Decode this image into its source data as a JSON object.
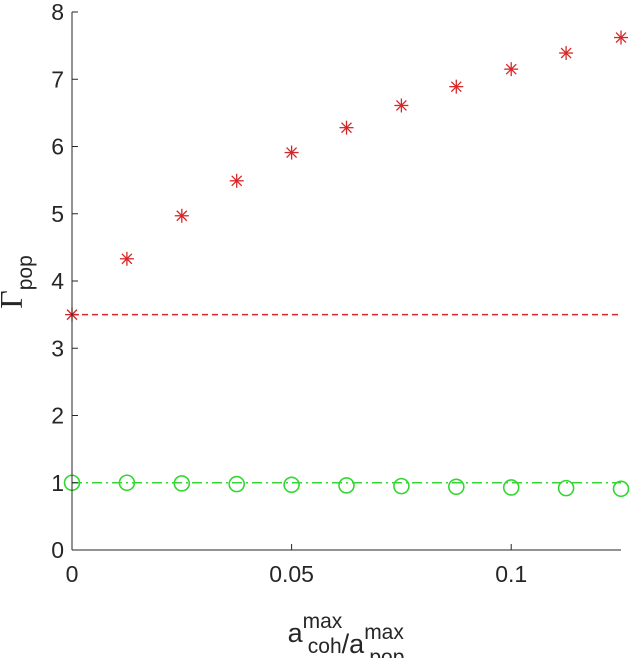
{
  "chart_data": {
    "type": "scatter",
    "xlabel": {
      "parts": [
        {
          "base": "a",
          "sup": "max",
          "sub": "coh"
        },
        {
          "sep": "/"
        },
        {
          "base": "a",
          "sup": "max",
          "sub": "pop"
        }
      ]
    },
    "ylabel": {
      "main": "Γ",
      "sub": "pop"
    },
    "xlim": [
      0,
      0.125
    ],
    "ylim": [
      0,
      8
    ],
    "xticks": [
      0,
      0.05,
      0.1
    ],
    "xtick_labels": [
      "0",
      "0.05",
      "0.1"
    ],
    "yticks": [
      0,
      1,
      2,
      3,
      4,
      5,
      6,
      7,
      8
    ],
    "ytick_labels": [
      "0",
      "1",
      "2",
      "3",
      "4",
      "5",
      "6",
      "7",
      "8"
    ],
    "grid": false,
    "series": [
      {
        "marker": "asterisk",
        "color": "#d62728",
        "x": [
          0,
          0.0125,
          0.025,
          0.0375,
          0.05,
          0.0625,
          0.075,
          0.0875,
          0.1,
          0.1125,
          0.125
        ],
        "y": [
          3.5,
          4.33,
          4.97,
          5.49,
          5.91,
          6.28,
          6.61,
          6.89,
          7.15,
          7.39,
          7.62
        ]
      },
      {
        "marker": "circle",
        "color": "#33d633",
        "x": [
          0,
          0.0125,
          0.025,
          0.0375,
          0.05,
          0.0625,
          0.075,
          0.0875,
          0.1,
          0.1125,
          0.125
        ],
        "y": [
          1.0,
          1.0,
          0.99,
          0.98,
          0.97,
          0.96,
          0.95,
          0.94,
          0.93,
          0.92,
          0.91
        ]
      }
    ],
    "reference_lines": [
      {
        "y": 3.5,
        "style": "dashed",
        "color": "#d62728"
      },
      {
        "y": 1.0,
        "style": "dash-dot",
        "color": "#33d633"
      }
    ]
  }
}
